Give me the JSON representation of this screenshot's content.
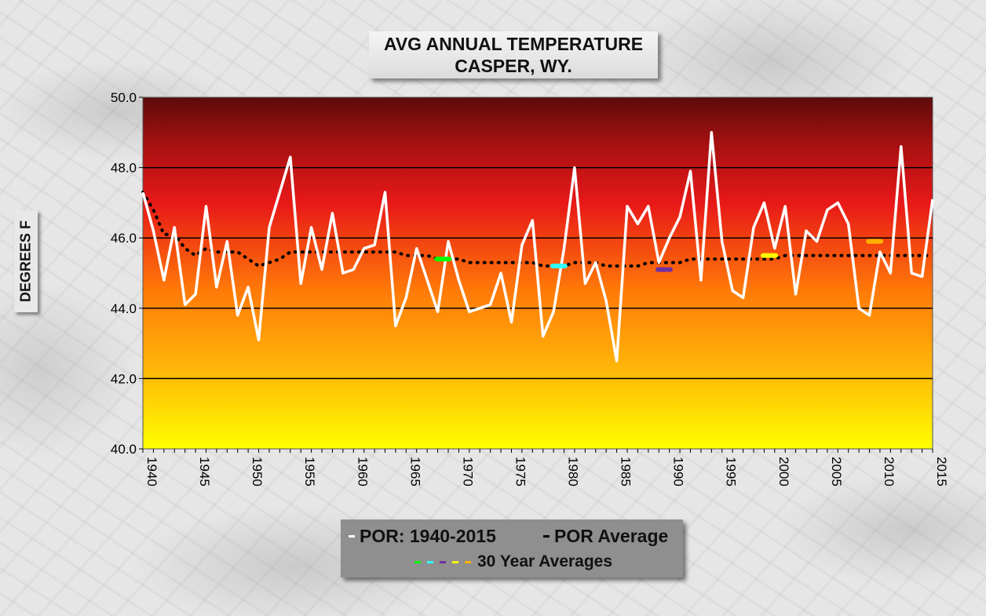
{
  "title": {
    "line1": "AVG ANNUAL  TEMPERATURE",
    "line2": "CASPER, WY."
  },
  "ylabel": "DEGREES F",
  "legend": {
    "por_label": "POR: 1940-2015",
    "avg_label": "POR Average",
    "thirty_label": "30 Year Averages"
  },
  "colors": {
    "por_series": "#ffffff",
    "por_average": "#000000",
    "thirty_1": "#00ff00",
    "thirty_2": "#33ffff",
    "thirty_3": "#7030a0",
    "thirty_4": "#ffff00",
    "thirty_5": "#ffb000"
  },
  "chart_data": {
    "type": "line",
    "title": "AVG ANNUAL  TEMPERATURE CASPER, WY.",
    "xlabel": "",
    "ylabel": "DEGREES F",
    "xlim": [
      1940,
      2015
    ],
    "ylim": [
      40.0,
      50.0
    ],
    "yticks": [
      "40.0",
      "42.0",
      "44.0",
      "46.0",
      "48.0",
      "50.0"
    ],
    "xticks": [
      "1940",
      "1945",
      "1950",
      "1955",
      "1960",
      "1965",
      "1970",
      "1975",
      "1980",
      "1985",
      "1990",
      "1995",
      "2000",
      "2005",
      "2010",
      "2015"
    ],
    "background": "gradient dark red (top) to yellow (bottom)",
    "grid": "horizontal",
    "series": [
      {
        "name": "POR: 1940-2015",
        "style": "solid",
        "x": [
          1940,
          1941,
          1942,
          1943,
          1944,
          1945,
          1946,
          1947,
          1948,
          1949,
          1950,
          1951,
          1952,
          1953,
          1954,
          1955,
          1956,
          1957,
          1958,
          1959,
          1960,
          1961,
          1962,
          1963,
          1964,
          1965,
          1966,
          1967,
          1968,
          1969,
          1970,
          1971,
          1972,
          1973,
          1974,
          1975,
          1976,
          1977,
          1978,
          1979,
          1980,
          1981,
          1982,
          1983,
          1984,
          1985,
          1986,
          1987,
          1988,
          1989,
          1990,
          1991,
          1992,
          1993,
          1994,
          1995,
          1996,
          1997,
          1998,
          1999,
          2000,
          2001,
          2002,
          2003,
          2004,
          2005,
          2006,
          2007,
          2008,
          2009,
          2010,
          2011,
          2012,
          2013,
          2014,
          2015
        ],
        "y": [
          47.3,
          46.2,
          44.8,
          46.3,
          44.1,
          44.4,
          46.9,
          44.6,
          45.9,
          43.8,
          44.6,
          43.1,
          46.3,
          47.3,
          48.3,
          44.7,
          46.3,
          45.1,
          46.7,
          45.0,
          45.1,
          45.7,
          45.8,
          47.3,
          43.5,
          44.3,
          45.7,
          44.8,
          43.9,
          45.9,
          44.8,
          43.9,
          44.0,
          44.1,
          45.0,
          43.6,
          45.8,
          46.5,
          43.2,
          43.9,
          45.7,
          48.0,
          44.7,
          45.3,
          44.2,
          42.5,
          46.9,
          46.4,
          46.9,
          45.3,
          46.0,
          46.6,
          47.9,
          44.8,
          49.0,
          45.9,
          44.5,
          44.3,
          46.3,
          47.0,
          45.7,
          46.9,
          44.4,
          46.2,
          45.9,
          46.8,
          47.0,
          46.4,
          44.0,
          43.8,
          45.6,
          45.0,
          48.6,
          45.0,
          44.9,
          47.1
        ]
      },
      {
        "name": "POR Average",
        "style": "dotted",
        "x": [
          1940,
          1941,
          1942,
          1943,
          1944,
          1945,
          1946,
          1947,
          1948,
          1949,
          1950,
          1951,
          1952,
          1953,
          1954,
          1955,
          1956,
          1957,
          1958,
          1959,
          1960,
          1961,
          1962,
          1963,
          1964,
          1965,
          1966,
          1967,
          1968,
          1969,
          1970,
          1971,
          1972,
          1973,
          1974,
          1975,
          1976,
          1977,
          1978,
          1979,
          1980,
          1981,
          1982,
          1983,
          1984,
          1985,
          1986,
          1987,
          1988,
          1989,
          1990,
          1991,
          1992,
          1993,
          1994,
          1995,
          1996,
          1997,
          1998,
          1999,
          2000,
          2001,
          2002,
          2003,
          2004,
          2005,
          2006,
          2007,
          2008,
          2009,
          2010,
          2011,
          2012,
          2013,
          2014,
          2015
        ],
        "y": [
          47.3,
          46.8,
          46.1,
          46.1,
          45.7,
          45.5,
          45.7,
          45.6,
          45.6,
          45.6,
          45.4,
          45.2,
          45.3,
          45.4,
          45.6,
          45.6,
          45.6,
          45.6,
          45.6,
          45.6,
          45.6,
          45.6,
          45.6,
          45.6,
          45.6,
          45.5,
          45.5,
          45.5,
          45.4,
          45.4,
          45.4,
          45.3,
          45.3,
          45.3,
          45.3,
          45.3,
          45.3,
          45.3,
          45.2,
          45.2,
          45.2,
          45.3,
          45.3,
          45.3,
          45.2,
          45.2,
          45.2,
          45.2,
          45.3,
          45.3,
          45.3,
          45.3,
          45.4,
          45.4,
          45.4,
          45.4,
          45.4,
          45.4,
          45.4,
          45.4,
          45.4,
          45.5,
          45.5,
          45.5,
          45.5,
          45.5,
          45.5,
          45.5,
          45.5,
          45.5,
          45.5,
          45.5,
          45.5,
          45.5,
          45.5,
          45.5
        ]
      }
    ],
    "thirty_year_averages": [
      {
        "x": 1968.5,
        "y": 45.4
      },
      {
        "x": 1979.5,
        "y": 45.2
      },
      {
        "x": 1989.5,
        "y": 45.1
      },
      {
        "x": 1999.5,
        "y": 45.5
      },
      {
        "x": 2009.5,
        "y": 45.9
      }
    ]
  }
}
